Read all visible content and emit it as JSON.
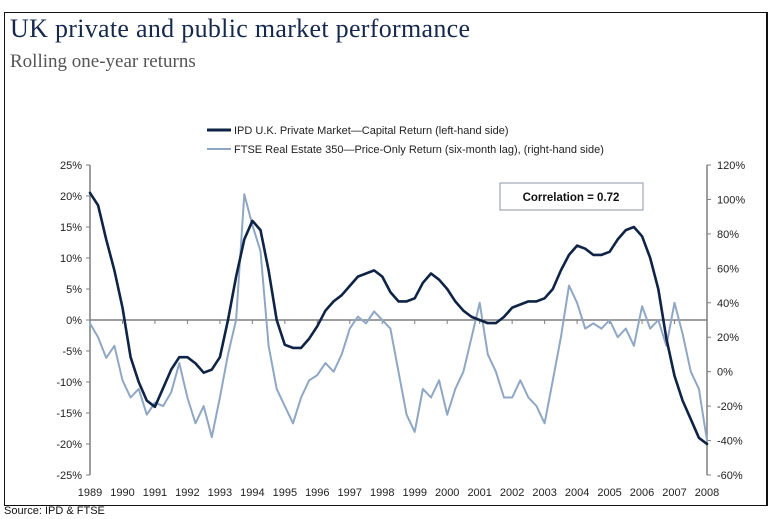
{
  "header": {
    "title": "UK private and public market performance",
    "subtitle": "Rolling one-year returns"
  },
  "footer": {
    "source": "Source: IPD & FTSE"
  },
  "colors": {
    "title": "#16294d",
    "series_private": "#0e2345",
    "series_public": "#8fa7c4",
    "axis": "#7f7f7f",
    "zero_line": "#7f7f7f"
  },
  "chart_data": {
    "type": "line",
    "title": "UK private and public market performance",
    "subtitle": "Rolling one-year returns",
    "xlabel": "",
    "ylabel_left": "",
    "ylabel_right": "",
    "x_range": [
      1989,
      2008
    ],
    "x_ticks": [
      "1989",
      "1990",
      "1991",
      "1992",
      "1993",
      "1994",
      "1995",
      "1996",
      "1997",
      "1998",
      "1999",
      "2000",
      "2001",
      "2002",
      "2003",
      "2004",
      "2005",
      "2006",
      "2007",
      "2008"
    ],
    "ylim_left": [
      -25,
      25
    ],
    "y_ticks_left": [
      "25%",
      "20%",
      "15%",
      "10%",
      "5%",
      "0%",
      "-5%",
      "-10%",
      "-15%",
      "-20%",
      "-25%"
    ],
    "ylim_right": [
      -60,
      120
    ],
    "y_ticks_right": [
      "120%",
      "100%",
      "80%",
      "60%",
      "40%",
      "20%",
      "0%",
      "-20%",
      "-40%",
      "-60%"
    ],
    "grid": false,
    "legend_position": "top-center",
    "annotation": "Correlation = 0.72",
    "series": [
      {
        "name": "IPD U.K. Private Market—Capital Return (left-hand side)",
        "axis": "left",
        "x": [
          1989.0,
          1989.25,
          1989.5,
          1989.75,
          1990.0,
          1990.25,
          1990.5,
          1990.75,
          1991.0,
          1991.25,
          1991.5,
          1991.75,
          1992.0,
          1992.25,
          1992.5,
          1992.75,
          1993.0,
          1993.25,
          1993.5,
          1993.75,
          1994.0,
          1994.25,
          1994.5,
          1994.75,
          1995.0,
          1995.25,
          1995.5,
          1995.75,
          1996.0,
          1996.25,
          1996.5,
          1996.75,
          1997.0,
          1997.25,
          1997.5,
          1997.75,
          1998.0,
          1998.25,
          1998.5,
          1998.75,
          1999.0,
          1999.25,
          1999.5,
          1999.75,
          2000.0,
          2000.25,
          2000.5,
          2000.75,
          2001.0,
          2001.25,
          2001.5,
          2001.75,
          2002.0,
          2002.25,
          2002.5,
          2002.75,
          2003.0,
          2003.25,
          2003.5,
          2003.75,
          2004.0,
          2004.25,
          2004.5,
          2004.75,
          2005.0,
          2005.25,
          2005.5,
          2005.75,
          2006.0,
          2006.25,
          2006.5,
          2006.75,
          2007.0,
          2007.25,
          2007.5,
          2007.75,
          2008.0
        ],
        "values": [
          20.5,
          18.5,
          13,
          8,
          2,
          -6,
          -10,
          -13,
          -14,
          -11,
          -8,
          -6,
          -6,
          -7,
          -8.5,
          -8,
          -6,
          0,
          7,
          13,
          16,
          14.5,
          8,
          0,
          -4,
          -4.5,
          -4.5,
          -3,
          -1,
          1.5,
          3,
          4,
          5.5,
          7,
          7.5,
          8,
          7,
          4.5,
          3,
          3,
          3.5,
          6,
          7.5,
          6.5,
          5,
          3,
          1.5,
          0.5,
          0,
          -0.5,
          -0.5,
          0.5,
          2,
          2.5,
          3,
          3,
          3.5,
          5,
          8,
          10.5,
          12,
          11.5,
          10.5,
          10.5,
          11,
          13,
          14.5,
          15,
          13.5,
          10,
          5,
          -3,
          -9,
          -13,
          -16,
          -19,
          -20
        ]
      },
      {
        "name": "FTSE Real Estate 350—Price-Only Return (six-month lag), (right-hand side)",
        "axis": "right",
        "x": [
          1989.0,
          1989.25,
          1989.5,
          1989.75,
          1990.0,
          1990.25,
          1990.5,
          1990.75,
          1991.0,
          1991.25,
          1991.5,
          1991.75,
          1992.0,
          1992.25,
          1992.5,
          1992.75,
          1993.0,
          1993.25,
          1993.5,
          1993.75,
          1994.0,
          1994.25,
          1994.5,
          1994.75,
          1995.0,
          1995.25,
          1995.5,
          1995.75,
          1996.0,
          1996.25,
          1996.5,
          1996.75,
          1997.0,
          1997.25,
          1997.5,
          1997.75,
          1998.0,
          1998.25,
          1998.5,
          1998.75,
          1999.0,
          1999.25,
          1999.5,
          1999.75,
          2000.0,
          2000.25,
          2000.5,
          2000.75,
          2001.0,
          2001.25,
          2001.5,
          2001.75,
          2002.0,
          2002.25,
          2002.5,
          2002.75,
          2003.0,
          2003.25,
          2003.5,
          2003.75,
          2004.0,
          2004.25,
          2004.5,
          2004.75,
          2005.0,
          2005.25,
          2005.5,
          2005.75,
          2006.0,
          2006.25,
          2006.5,
          2006.75,
          2007.0,
          2007.25,
          2007.5,
          2007.75,
          2008.0
        ],
        "values": [
          28,
          20,
          8,
          15,
          -5,
          -15,
          -10,
          -25,
          -18,
          -20,
          -12,
          5,
          -15,
          -30,
          -20,
          -38,
          -15,
          10,
          30,
          103,
          85,
          70,
          15,
          -10,
          -20,
          -30,
          -15,
          -5,
          -2,
          5,
          0,
          10,
          25,
          32,
          28,
          35,
          30,
          25,
          0,
          -25,
          -35,
          -10,
          -15,
          -5,
          -25,
          -10,
          0,
          20,
          40,
          10,
          0,
          -15,
          -15,
          -5,
          -15,
          -20,
          -30,
          -5,
          20,
          50,
          40,
          25,
          28,
          25,
          30,
          20,
          25,
          15,
          38,
          25,
          30,
          15,
          40,
          22,
          0,
          -10,
          -40
        ]
      }
    ]
  }
}
